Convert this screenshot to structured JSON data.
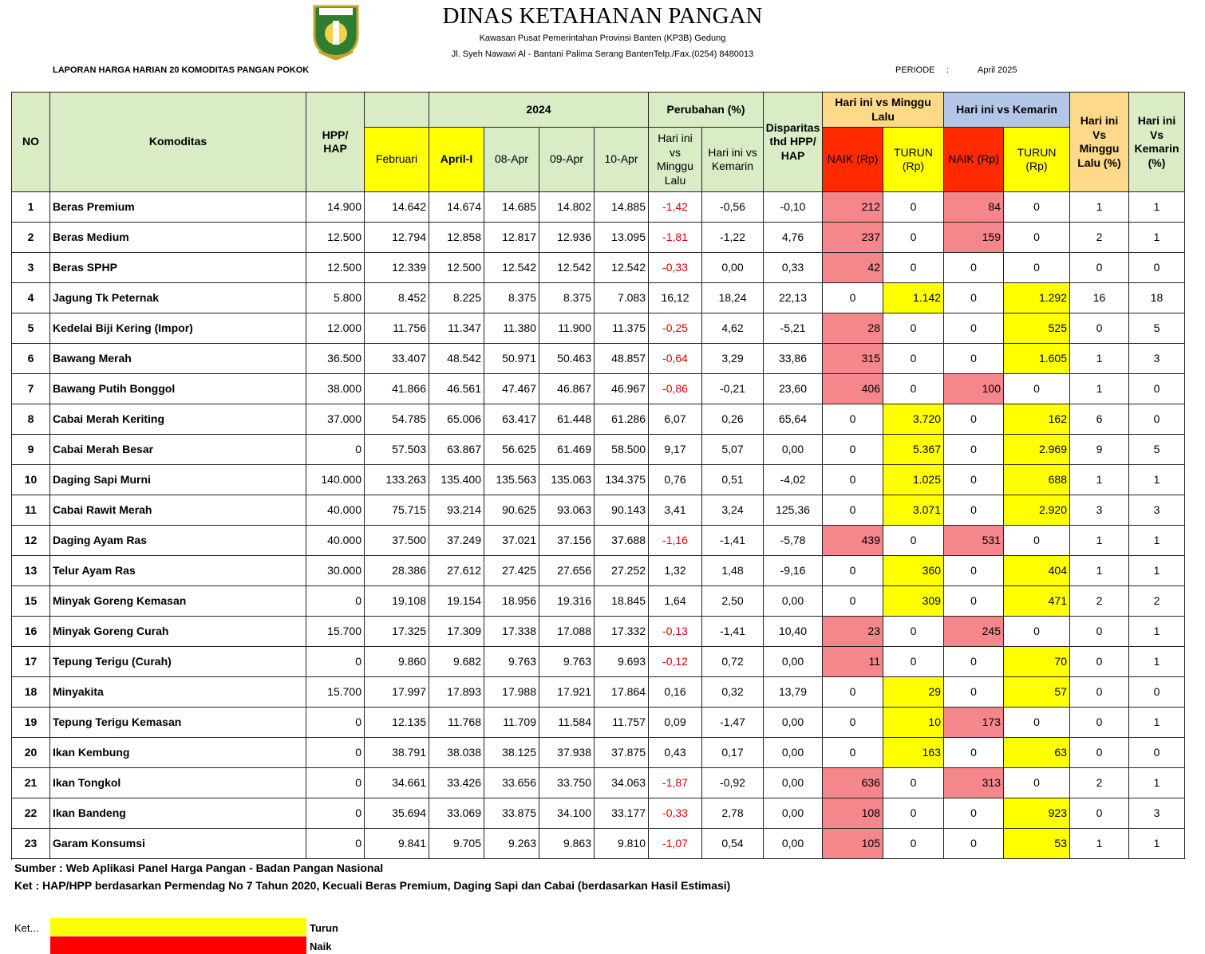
{
  "header": {
    "title": "DINAS KETAHANAN PANGAN",
    "address1": "Kawasan Pusat Pemerintahan Provinsi Banten (KP3B) Gedung",
    "address2": "Jl. Syeh Nawawi Al - Bantani Palima Serang BantenTelp./Fax.(0254) 8480013",
    "report_title": "LAPORAN HARGA HARIAN 20 KOMODITAS PANGAN POKOK",
    "periode_label": "PERIODE",
    "periode_sep": ":",
    "periode_value": "April 2025"
  },
  "table": {
    "columns": {
      "no": "NO",
      "komoditas": "Komoditas",
      "hpp": "HPP/ HAP",
      "year": "2024",
      "februari": "Februari",
      "april1": "April-I",
      "d08": "08-Apr",
      "d09": "09-Apr",
      "d10": "10-Apr",
      "perubahan": "Perubahan (%)",
      "perub_minggu": "Hari ini vs Minggu Lalu",
      "perub_kemarin": "Hari ini vs Kemarin",
      "disparitas": "Disparitas thd HPP/ HAP",
      "vs_minggu": "Hari ini vs Minggu Lalu",
      "naik1": "NAIK (Rp)",
      "turun1": "TURUN (Rp)",
      "vs_kemarin": "Hari ini vs Kemarin",
      "naik2": "NAIK (Rp)",
      "turun2": "TURUN (Rp)",
      "pct_minggu": "Hari ini Vs Minggu Lalu (%)",
      "pct_kemarin": "Hari ini Vs Kemarin (%)"
    },
    "rows": [
      [
        "1",
        "Beras Premium",
        "14.900",
        "14.642",
        "14.674",
        "14.685",
        "14.802",
        "14.885",
        "-1,42",
        "-0,56",
        "-0,10",
        "212",
        "0",
        "84",
        "0",
        "1",
        "1"
      ],
      [
        "2",
        "Beras Medium",
        "12.500",
        "12.794",
        "12.858",
        "12.817",
        "12.936",
        "13.095",
        "-1,81",
        "-1,22",
        "4,76",
        "237",
        "0",
        "159",
        "0",
        "2",
        "1"
      ],
      [
        "3",
        "Beras SPHP",
        "12.500",
        "12.339",
        "12.500",
        "12.542",
        "12.542",
        "12.542",
        "-0,33",
        "0,00",
        "0,33",
        "42",
        "0",
        "0",
        "0",
        "0",
        "0"
      ],
      [
        "4",
        "Jagung Tk Peternak",
        "5.800",
        "8.452",
        "8.225",
        "8.375",
        "8.375",
        "7.083",
        "16,12",
        "18,24",
        "22,13",
        "0",
        "1.142",
        "0",
        "1.292",
        "16",
        "18"
      ],
      [
        "5",
        "Kedelai Biji Kering (Impor)",
        "12.000",
        "11.756",
        "11.347",
        "11.380",
        "11.900",
        "11.375",
        "-0,25",
        "4,62",
        "-5,21",
        "28",
        "0",
        "0",
        "525",
        "0",
        "5"
      ],
      [
        "6",
        "Bawang Merah",
        "36.500",
        "33.407",
        "48.542",
        "50.971",
        "50.463",
        "48.857",
        "-0,64",
        "3,29",
        "33,86",
        "315",
        "0",
        "0",
        "1.605",
        "1",
        "3"
      ],
      [
        "7",
        "Bawang Putih Bonggol",
        "38.000",
        "41.866",
        "46.561",
        "47.467",
        "46.867",
        "46.967",
        "-0,86",
        "-0,21",
        "23,60",
        "406",
        "0",
        "100",
        "0",
        "1",
        "0"
      ],
      [
        "8",
        "Cabai Merah Keriting",
        "37.000",
        "54.785",
        "65.006",
        "63.417",
        "61.448",
        "61.286",
        "6,07",
        "0,26",
        "65,64",
        "0",
        "3.720",
        "0",
        "162",
        "6",
        "0"
      ],
      [
        "9",
        "Cabai Merah Besar",
        "0",
        "57.503",
        "63.867",
        "56.625",
        "61.469",
        "58.500",
        "9,17",
        "5,07",
        "0,00",
        "0",
        "5.367",
        "0",
        "2.969",
        "9",
        "5"
      ],
      [
        "10",
        "Daging Sapi Murni",
        "140.000",
        "133.263",
        "135.400",
        "135.563",
        "135.063",
        "134.375",
        "0,76",
        "0,51",
        "-4,02",
        "0",
        "1.025",
        "0",
        "688",
        "1",
        "1"
      ],
      [
        "11",
        "Cabai Rawit Merah",
        "40.000",
        "75.715",
        "93.214",
        "90.625",
        "93.063",
        "90.143",
        "3,41",
        "3,24",
        "125,36",
        "0",
        "3.071",
        "0",
        "2.920",
        "3",
        "3"
      ],
      [
        "12",
        "Daging Ayam Ras",
        "40.000",
        "37.500",
        "37.249",
        "37.021",
        "37.156",
        "37.688",
        "-1,16",
        "-1,41",
        "-5,78",
        "439",
        "0",
        "531",
        "0",
        "1",
        "1"
      ],
      [
        "13",
        "Telur Ayam Ras",
        "30.000",
        "28.386",
        "27.612",
        "27.425",
        "27.656",
        "27.252",
        "1,32",
        "1,48",
        "-9,16",
        "0",
        "360",
        "0",
        "404",
        "1",
        "1"
      ],
      [
        "15",
        "Minyak Goreng Kemasan",
        "0",
        "19.108",
        "19.154",
        "18.956",
        "19.316",
        "18.845",
        "1,64",
        "2,50",
        "0,00",
        "0",
        "309",
        "0",
        "471",
        "2",
        "2"
      ],
      [
        "16",
        "Minyak Goreng Curah",
        "15.700",
        "17.325",
        "17.309",
        "17.338",
        "17.088",
        "17.332",
        "-0,13",
        "-1,41",
        "10,40",
        "23",
        "0",
        "245",
        "0",
        "0",
        "1"
      ],
      [
        "17",
        "Tepung Terigu (Curah)",
        "0",
        "9.860",
        "9.682",
        "9.763",
        "9.763",
        "9.693",
        "-0,12",
        "0,72",
        "0,00",
        "11",
        "0",
        "0",
        "70",
        "0",
        "1"
      ],
      [
        "18",
        "Minyakita",
        "15.700",
        "17.997",
        "17.893",
        "17.988",
        "17.921",
        "17.864",
        "0,16",
        "0,32",
        "13,79",
        "0",
        "29",
        "0",
        "57",
        "0",
        "0"
      ],
      [
        "19",
        "Tepung Terigu Kemasan",
        "0",
        "12.135",
        "11.768",
        "11.709",
        "11.584",
        "11.757",
        "0,09",
        "-1,47",
        "0,00",
        "0",
        "10",
        "173",
        "0",
        "0",
        "1"
      ],
      [
        "20",
        "Ikan Kembung",
        "0",
        "38.791",
        "38.038",
        "38.125",
        "37.938",
        "37.875",
        "0,43",
        "0,17",
        "0,00",
        "0",
        "163",
        "0",
        "63",
        "0",
        "0"
      ],
      [
        "21",
        "Ikan Tongkol",
        "0",
        "34.661",
        "33.426",
        "33.656",
        "33.750",
        "34.063",
        "-1,87",
        "-0,92",
        "0,00",
        "636",
        "0",
        "313",
        "0",
        "2",
        "1"
      ],
      [
        "22",
        "Ikan Bandeng",
        "0",
        "35.694",
        "33.069",
        "33.875",
        "34.100",
        "33.177",
        "-0,33",
        "2,78",
        "0,00",
        "108",
        "0",
        "0",
        "923",
        "0",
        "3"
      ],
      [
        "23",
        "Garam Konsumsi",
        "0",
        "9.841",
        "9.705",
        "9.263",
        "9.863",
        "9.810",
        "-1,07",
        "0,54",
        "0,00",
        "105",
        "0",
        "0",
        "53",
        "1",
        "1"
      ]
    ]
  },
  "footer": {
    "source": "Sumber : Web Aplikasi Panel Harga Pangan - Badan Pangan Nasional",
    "note": "Ket : HAP/HPP berdasarkan Permendag No 7 Tahun 2020, Kecuali Beras Premium, Daging Sapi dan Cabai (berdasarkan Hasil Estimasi)",
    "legend_label": "Ket...",
    "legend_turun": "Turun",
    "legend_naik": "Naik"
  }
}
